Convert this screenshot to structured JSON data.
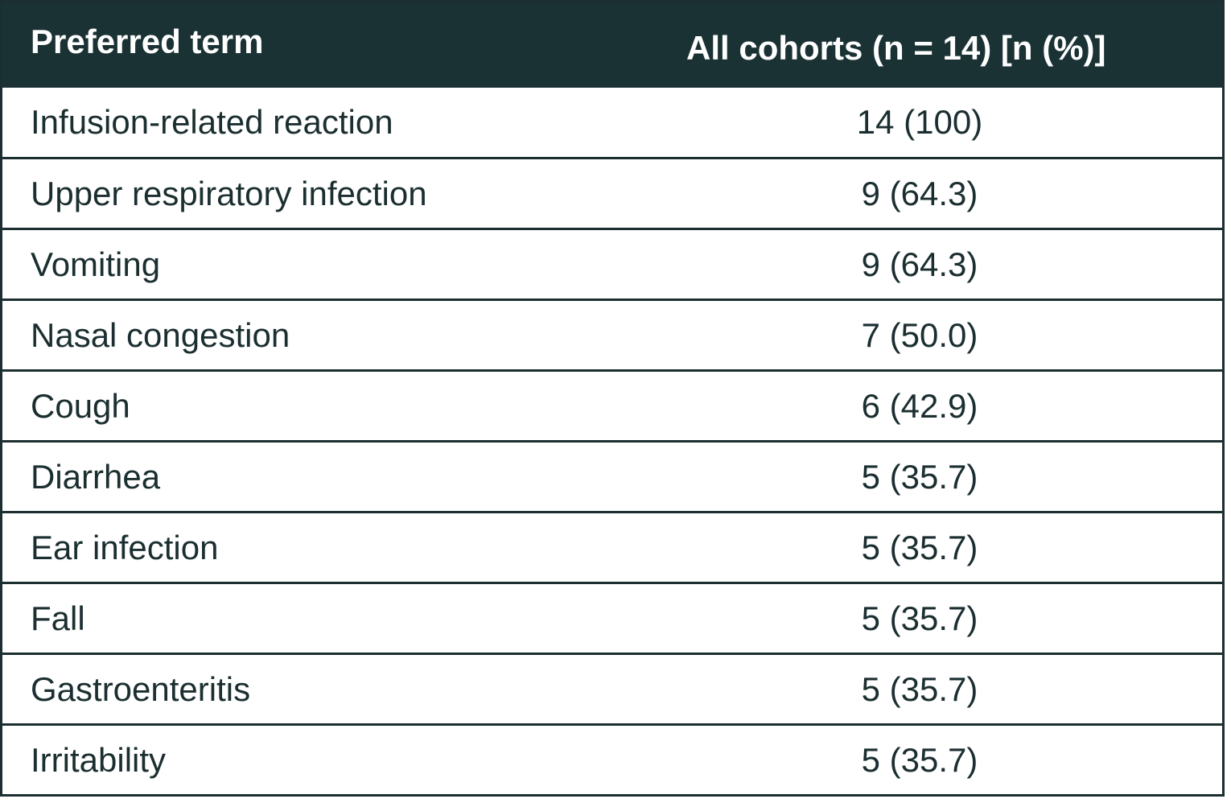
{
  "table": {
    "headers": {
      "term": "Preferred term",
      "all": "All cohorts (n = 14) [n (%)]"
    },
    "rows": [
      {
        "term": "Infusion-related reaction",
        "value": "14 (100)"
      },
      {
        "term": "Upper respiratory infection",
        "value": "9 (64.3)"
      },
      {
        "term": "Vomiting",
        "value": "9 (64.3)"
      },
      {
        "term": "Nasal congestion",
        "value": "7 (50.0)"
      },
      {
        "term": "Cough",
        "value": "6 (42.9)"
      },
      {
        "term": "Diarrhea",
        "value": "5 (35.7)"
      },
      {
        "term": "Ear infection",
        "value": "5 (35.7)"
      },
      {
        "term": "Fall",
        "value": "5 (35.7)"
      },
      {
        "term": "Gastroenteritis",
        "value": "5 (35.7)"
      },
      {
        "term": "Irritability",
        "value": "5 (35.7)"
      }
    ]
  },
  "colors": {
    "header_bg": "#1b3234",
    "header_text": "#ffffff",
    "body_text": "#1b2e30",
    "border": "#1b2e30"
  }
}
